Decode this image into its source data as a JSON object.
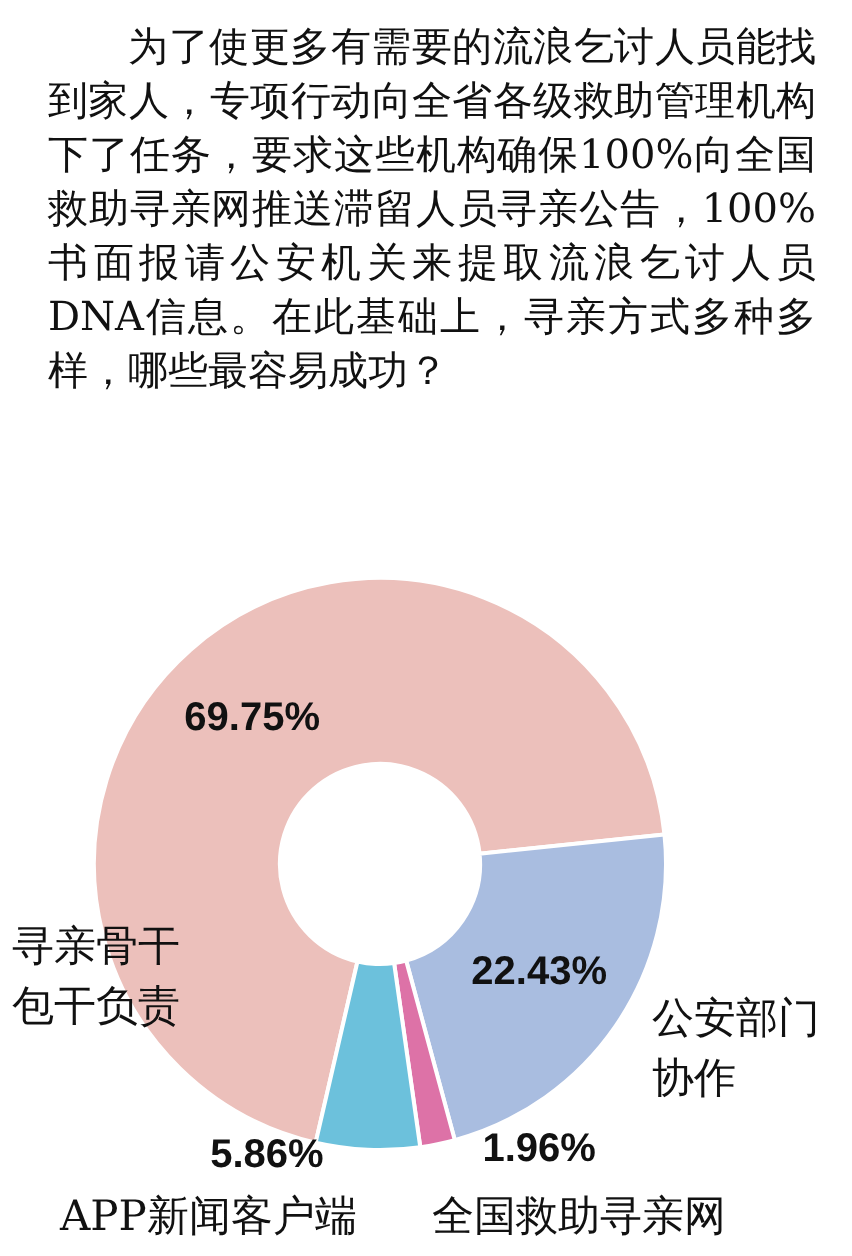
{
  "chart_data": {
    "type": "donut",
    "title": "为了使更多有需要的流浪乞讨人员能找到家人，专项行动向全省各级救助管理机构下了任务，要求这些机构确保100%向全国救助寻亲网推送滞留人员寻亲公告，100%书面报请公安机关来提取流浪乞讨人员DNA信息。在此基础上，寻亲方式多种多样，哪些最容易成功？",
    "categories": [
      "寻亲骨干包干负责",
      "公安部门协作",
      "全国救助寻亲网",
      "APP新闻客户端"
    ],
    "values": [
      69.75,
      22.43,
      1.96,
      5.86
    ],
    "value_labels": [
      "69.75%",
      "22.43%",
      "1.96%",
      "5.86%"
    ],
    "colors": [
      "#ecc0bb",
      "#a9bde0",
      "#dd72a7",
      "#6cc1dc"
    ],
    "legend": false
  }
}
